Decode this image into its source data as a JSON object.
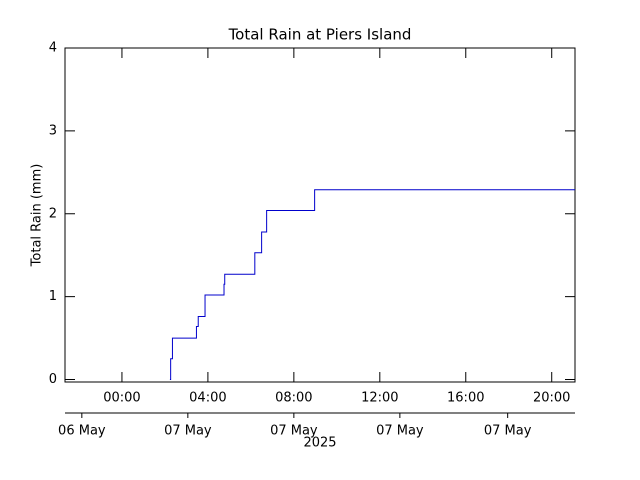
{
  "chart_data": {
    "type": "line",
    "title": "Total Rain at Piers Island",
    "y_label": "Total Rain (mm)",
    "step": "post",
    "x": [
      "2025-05-07T02:14",
      "2025-05-07T02:16",
      "2025-05-07T02:21",
      "2025-05-07T03:28",
      "2025-05-07T03:33",
      "2025-05-07T03:52",
      "2025-05-07T04:45",
      "2025-05-07T04:47",
      "2025-05-07T06:11",
      "2025-05-07T06:30",
      "2025-05-07T06:44",
      "2025-05-07T08:58",
      "2025-05-07T21:05"
    ],
    "series": [
      {
        "name": "Total Rain",
        "color": "#0000cc",
        "values": [
          0,
          0.25,
          0.5,
          0.64,
          0.76,
          1.02,
          1.15,
          1.27,
          1.53,
          1.78,
          2.04,
          2.29,
          2.29
        ]
      }
    ],
    "xlim": [
      "2025-05-06T21:21",
      "2025-05-07T21:05"
    ],
    "xticks": [
      {
        "value": "2025-05-07T00:00",
        "label": "00:00"
      },
      {
        "value": "2025-05-07T04:00",
        "label": "04:00"
      },
      {
        "value": "2025-05-07T08:00",
        "label": "08:00"
      },
      {
        "value": "2025-05-07T12:00",
        "label": "12:00"
      },
      {
        "value": "2025-05-07T16:00",
        "label": "16:00"
      },
      {
        "value": "2025-05-07T20:00",
        "label": "20:00"
      }
    ],
    "x2ticks": [
      {
        "value": "2025-05-06T22:08",
        "label": "06 May"
      },
      {
        "value": "2025-05-07T03:04",
        "label": "07 May"
      },
      {
        "value": "2025-05-07T08:00",
        "label": "07 May"
      },
      {
        "value": "2025-05-07T12:56",
        "label": "07 May"
      },
      {
        "value": "2025-05-07T17:57",
        "label": "07 May"
      }
    ],
    "x2_label": "2025",
    "ylim": [
      -0.03,
      4
    ],
    "yticks": [
      0,
      1,
      2,
      3,
      4
    ]
  }
}
